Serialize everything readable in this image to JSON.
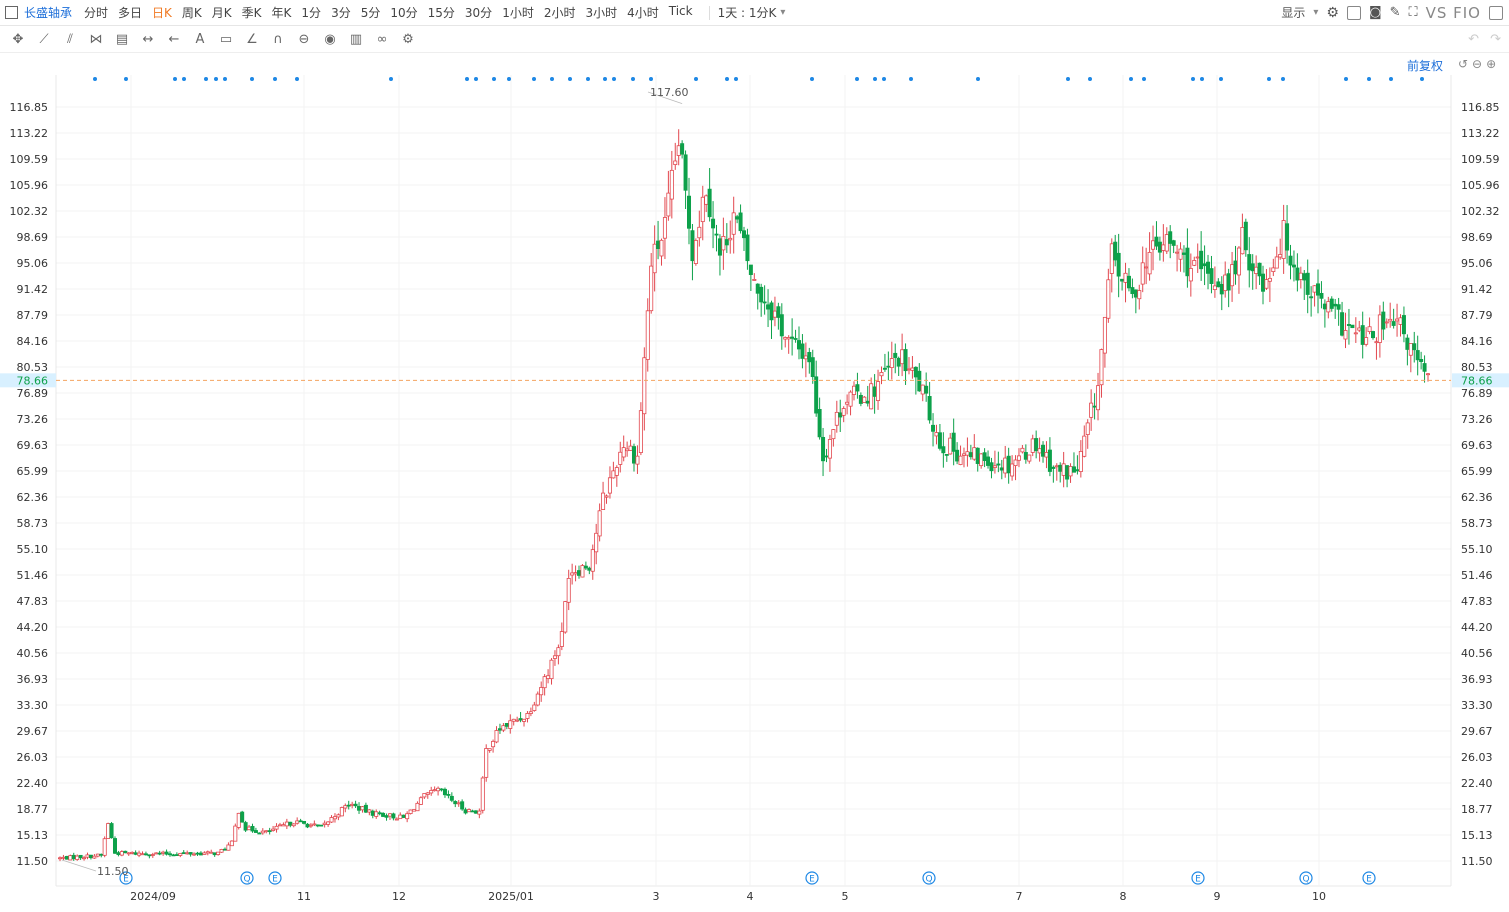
{
  "toolbar": {
    "stock_name": "长盛轴承",
    "periods": [
      "分时",
      "多日",
      "日K",
      "周K",
      "月K",
      "季K",
      "年K",
      "1分",
      "3分",
      "5分",
      "10分",
      "15分",
      "30分",
      "1小时",
      "2小时",
      "3小时",
      "4小时",
      "Tick"
    ],
    "active_period": "日K",
    "interval_label": "1天 : 1分K",
    "display_label": "显示",
    "compare_label": "VS FIO"
  },
  "adjust_label": "前复权",
  "colors": {
    "up": "#e2474e",
    "down": "#0da14a",
    "price_line": "#f4a460",
    "marker": "#1e88e5",
    "current_label_bg": "#d8f0ff"
  },
  "chart_data": {
    "type": "candlestick",
    "y_ticks": [
      "116.85",
      "113.22",
      "109.59",
      "105.96",
      "102.32",
      "98.69",
      "95.06",
      "91.42",
      "87.79",
      "84.16",
      "80.53",
      "76.89",
      "73.26",
      "69.63",
      "65.99",
      "62.36",
      "58.73",
      "55.10",
      "51.46",
      "47.83",
      "44.20",
      "40.56",
      "36.93",
      "33.30",
      "29.67",
      "26.03",
      "22.40",
      "18.77",
      "15.13",
      "11.50"
    ],
    "ylim": [
      11.5,
      116.85
    ],
    "x_labels": [
      "2024/09",
      "11",
      "12",
      "2025/01",
      "3",
      "4",
      "5",
      "7",
      "8",
      "9",
      "10"
    ],
    "current_price": "78.66",
    "high_label": "117.60",
    "low_label": "11.50",
    "event_badges": [
      "E",
      "Q",
      "E",
      "E",
      "Q",
      "E",
      "Q",
      "E"
    ],
    "waypoints": [
      [
        0,
        11.9
      ],
      [
        12,
        12.3
      ],
      [
        14,
        16.8
      ],
      [
        16,
        12.6
      ],
      [
        30,
        12.5
      ],
      [
        46,
        12.6
      ],
      [
        50,
        14.0
      ],
      [
        52,
        18.5
      ],
      [
        54,
        16.0
      ],
      [
        60,
        15.5
      ],
      [
        68,
        17.0
      ],
      [
        76,
        16.2
      ],
      [
        84,
        19.5
      ],
      [
        90,
        18.3
      ],
      [
        100,
        17.5
      ],
      [
        106,
        20.5
      ],
      [
        110,
        21.4
      ],
      [
        118,
        18.6
      ],
      [
        122,
        18.4
      ],
      [
        124,
        27.0
      ],
      [
        128,
        30.0
      ],
      [
        136,
        32.0
      ],
      [
        142,
        38.0
      ],
      [
        146,
        43.0
      ],
      [
        148,
        52.0
      ],
      [
        154,
        53.0
      ],
      [
        158,
        62.0
      ],
      [
        164,
        70.0
      ],
      [
        168,
        68.0
      ],
      [
        172,
        95.0
      ],
      [
        176,
        100.0
      ],
      [
        180,
        112.0
      ],
      [
        184,
        97.0
      ],
      [
        188,
        106.0
      ],
      [
        192,
        96.0
      ],
      [
        196,
        102.0
      ],
      [
        202,
        92.0
      ],
      [
        208,
        88.0
      ],
      [
        212,
        84.0
      ],
      [
        218,
        82.0
      ],
      [
        222,
        68.0
      ],
      [
        228,
        76.0
      ],
      [
        236,
        77.0
      ],
      [
        244,
        82.0
      ],
      [
        250,
        78.0
      ],
      [
        256,
        70.0
      ],
      [
        264,
        68.0
      ],
      [
        276,
        67.0
      ],
      [
        284,
        70.0
      ],
      [
        290,
        66.0
      ],
      [
        296,
        66.0
      ],
      [
        302,
        78.0
      ],
      [
        306,
        96.0
      ],
      [
        312,
        90.0
      ],
      [
        316,
        96.0
      ],
      [
        322,
        98.0
      ],
      [
        328,
        95.0
      ],
      [
        334,
        93.0
      ],
      [
        340,
        92.0
      ],
      [
        344,
        98.0
      ],
      [
        350,
        92.0
      ],
      [
        356,
        99.0
      ],
      [
        360,
        94.0
      ],
      [
        366,
        90.0
      ],
      [
        374,
        86.0
      ],
      [
        380,
        84.0
      ],
      [
        384,
        86.0
      ],
      [
        390,
        86.0
      ],
      [
        396,
        80.0
      ],
      [
        398,
        78.4
      ]
    ]
  }
}
